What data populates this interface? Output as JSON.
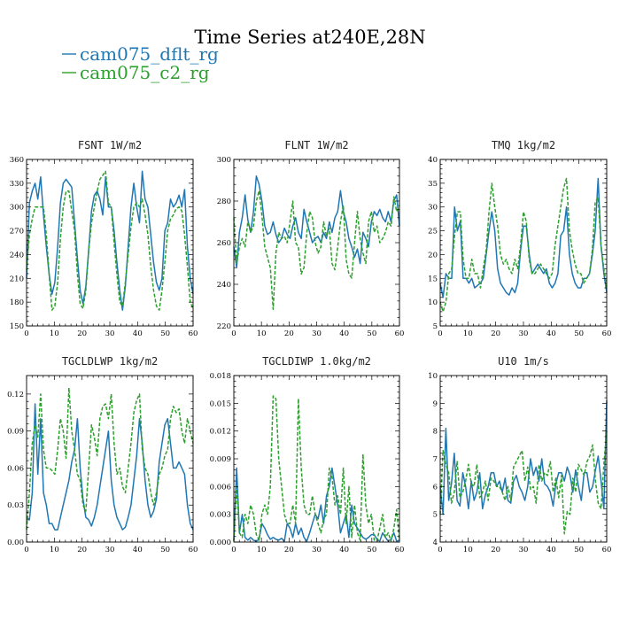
{
  "title": "Time Series at240E,28N",
  "legend": [
    {
      "label": "cam075_dflt_rg",
      "color": "#1f77b4",
      "dash": "solid"
    },
    {
      "label": "cam075_c2_rg",
      "color": "#2ca02c",
      "dash": "dashed"
    }
  ],
  "chart_data": [
    {
      "type": "line",
      "title": "FSNT   1W/m2",
      "xlim": [
        0,
        60
      ],
      "ylim": [
        150,
        360
      ],
      "xticks": [
        0,
        10,
        20,
        30,
        40,
        50,
        60
      ],
      "yticks": [
        150,
        180,
        210,
        240,
        270,
        300,
        330,
        360
      ],
      "yticklabels": [
        "150",
        "180",
        "210",
        "240",
        "270",
        "300",
        "330",
        "360"
      ],
      "series": [
        {
          "name": "cam075_dflt_rg",
          "values": [
            210,
            305,
            320,
            330,
            310,
            338,
            290,
            250,
            215,
            190,
            205,
            250,
            305,
            330,
            335,
            330,
            325,
            280,
            235,
            195,
            178,
            200,
            245,
            295,
            315,
            320,
            310,
            290,
            338,
            300,
            300,
            270,
            230,
            195,
            170,
            200,
            250,
            300,
            330,
            300,
            280,
            345,
            310,
            300,
            265,
            230,
            205,
            195,
            210,
            270,
            280,
            310,
            300,
            305,
            315,
            300,
            322,
            250,
            210,
            190
          ]
        },
        {
          "name": "cam075_c2_rg",
          "values": [
            220,
            265,
            285,
            300,
            300,
            300,
            300,
            265,
            215,
            170,
            175,
            205,
            260,
            300,
            320,
            320,
            295,
            270,
            215,
            178,
            172,
            195,
            245,
            280,
            300,
            320,
            335,
            340,
            345,
            305,
            300,
            255,
            215,
            180,
            175,
            205,
            240,
            275,
            300,
            305,
            300,
            310,
            290,
            265,
            225,
            195,
            175,
            170,
            195,
            230,
            270,
            285,
            290,
            298,
            300,
            295,
            265,
            225,
            180,
            172
          ]
        }
      ]
    },
    {
      "type": "line",
      "title": "FLNT   1W/m2",
      "xlim": [
        0,
        60
      ],
      "ylim": [
        220,
        300
      ],
      "xticks": [
        0,
        10,
        20,
        30,
        40,
        50,
        60
      ],
      "yticks": [
        220,
        240,
        260,
        280,
        300
      ],
      "yticklabels": [
        "220",
        "240",
        "260",
        "280",
        "300"
      ],
      "series": [
        {
          "name": "cam075_dflt_rg",
          "values": [
            258,
            248,
            265,
            272,
            283,
            271,
            265,
            275,
            292,
            288,
            280,
            268,
            264,
            265,
            270,
            264,
            260,
            262,
            267,
            264,
            262,
            268,
            272,
            265,
            262,
            276,
            270,
            265,
            260,
            262,
            263,
            260,
            265,
            262,
            270,
            265,
            272,
            275,
            285,
            275,
            270,
            262,
            258,
            253,
            257,
            250,
            265,
            262,
            258,
            270,
            275,
            273,
            276,
            272,
            270,
            275,
            270,
            280,
            283,
            268
          ]
        },
        {
          "name": "cam075_c2_rg",
          "values": [
            272,
            250,
            258,
            262,
            258,
            270,
            265,
            268,
            280,
            285,
            273,
            258,
            253,
            248,
            228,
            255,
            265,
            262,
            263,
            260,
            270,
            280,
            260,
            258,
            245,
            248,
            265,
            275,
            272,
            260,
            255,
            258,
            270,
            263,
            267,
            250,
            247,
            258,
            270,
            278,
            252,
            245,
            243,
            260,
            275,
            262,
            255,
            250,
            270,
            275,
            265,
            268,
            260,
            262,
            265,
            270,
            268,
            282,
            275,
            278
          ]
        }
      ]
    },
    {
      "type": "line",
      "title": "TMQ   1kg/m2",
      "xlim": [
        0,
        60
      ],
      "ylim": [
        5,
        40
      ],
      "xticks": [
        0,
        10,
        20,
        30,
        40,
        50,
        60
      ],
      "yticks": [
        5,
        10,
        15,
        20,
        25,
        30,
        35,
        40
      ],
      "yticklabels": [
        "5",
        "10",
        "15",
        "20",
        "25",
        "30",
        "35",
        "40"
      ],
      "series": [
        {
          "name": "cam075_dflt_rg",
          "values": [
            14,
            11,
            16,
            15,
            15,
            30,
            25,
            27,
            15,
            15,
            14,
            15,
            13,
            13.5,
            14,
            15,
            20,
            25,
            29,
            25,
            17,
            14,
            13,
            12,
            11.5,
            13,
            12,
            14,
            21,
            26,
            26,
            20,
            16,
            17,
            18,
            17,
            16,
            17,
            14,
            13,
            14,
            16,
            24,
            25,
            30,
            20,
            16,
            14,
            13,
            13,
            15,
            15,
            16,
            20,
            25,
            36,
            22,
            16,
            12
          ]
        },
        {
          "name": "cam075_c2_rg",
          "values": [
            10,
            8,
            10,
            16,
            17,
            24,
            29,
            29,
            19,
            15,
            15,
            19,
            16,
            16,
            13,
            17,
            21,
            29,
            35,
            30,
            26,
            20,
            18,
            19,
            17,
            16,
            19,
            17,
            22,
            29,
            27,
            19,
            16,
            16,
            17,
            18,
            17,
            16,
            15,
            16,
            22,
            26,
            30,
            34,
            36,
            25,
            21,
            18,
            16,
            16,
            14,
            15,
            16,
            21,
            31,
            32,
            22,
            17,
            13
          ]
        }
      ]
    },
    {
      "type": "line",
      "title": "TGCLDLWP   1kg/m2",
      "xlim": [
        0,
        60
      ],
      "ylim": [
        0,
        0.135
      ],
      "xticks": [
        0,
        10,
        20,
        30,
        40,
        50,
        60
      ],
      "yticks": [
        0,
        0.03,
        0.06,
        0.09,
        0.12
      ],
      "yticklabels": [
        "0.00",
        "0.03",
        "0.06",
        "0.09",
        "0.12"
      ],
      "series": [
        {
          "name": "cam075_dflt_rg",
          "values": [
            0.02,
            0.018,
            0.04,
            0.112,
            0.055,
            0.1,
            0.04,
            0.03,
            0.015,
            0.015,
            0.01,
            0.01,
            0.02,
            0.03,
            0.04,
            0.05,
            0.065,
            0.075,
            0.1,
            0.06,
            0.035,
            0.02,
            0.018,
            0.013,
            0.02,
            0.03,
            0.045,
            0.06,
            0.075,
            0.09,
            0.05,
            0.03,
            0.02,
            0.015,
            0.01,
            0.012,
            0.02,
            0.03,
            0.05,
            0.07,
            0.1,
            0.08,
            0.05,
            0.03,
            0.02,
            0.025,
            0.035,
            0.065,
            0.08,
            0.095,
            0.1,
            0.08,
            0.06,
            0.06,
            0.065,
            0.06,
            0.055,
            0.03,
            0.015,
            0.01
          ]
        },
        {
          "name": "cam075_c2_rg",
          "values": [
            0.01,
            0.04,
            0.08,
            0.095,
            0.085,
            0.12,
            0.075,
            0.06,
            0.06,
            0.058,
            0.055,
            0.075,
            0.1,
            0.09,
            0.068,
            0.125,
            0.09,
            0.075,
            0.055,
            0.05,
            0.03,
            0.025,
            0.06,
            0.095,
            0.085,
            0.07,
            0.1,
            0.11,
            0.112,
            0.1,
            0.12,
            0.08,
            0.055,
            0.06,
            0.045,
            0.04,
            0.06,
            0.08,
            0.105,
            0.115,
            0.12,
            0.075,
            0.06,
            0.055,
            0.04,
            0.03,
            0.04,
            0.055,
            0.06,
            0.07,
            0.075,
            0.1,
            0.11,
            0.105,
            0.108,
            0.09,
            0.08,
            0.1,
            0.09,
            0.08
          ]
        }
      ]
    },
    {
      "type": "line",
      "title": "TGCLDIWP   1.0kg/m2",
      "xlim": [
        0,
        60
      ],
      "ylim": [
        0,
        0.018
      ],
      "xticks": [
        0,
        10,
        20,
        30,
        40,
        50,
        60
      ],
      "yticks": [
        0,
        0.003,
        0.006,
        0.009,
        0.012,
        0.015,
        0.018
      ],
      "yticklabels": [
        "0.000",
        "0.003",
        "0.006",
        "0.009",
        "0.012",
        "0.015",
        "0.018"
      ],
      "series": [
        {
          "name": "cam075_dflt_rg",
          "values": [
            0.0002,
            0.008,
            0.001,
            0.003,
            0.0005,
            0.0002,
            0.0005,
            0.0002,
            0.0001,
            0.0003,
            0.002,
            0.0015,
            0.0008,
            0.0003,
            0.0005,
            0.0003,
            0.0002,
            0.0004,
            0.0001,
            0.002,
            0.0015,
            0.0005,
            0.002,
            0.0008,
            0.0015,
            0.0005,
            0.0001,
            0.001,
            0.002,
            0.003,
            0.0025,
            0.004,
            0.002,
            0.005,
            0.006,
            0.008,
            0.006,
            0.004,
            0.001,
            0.002,
            0.003,
            0.0005,
            0.004,
            0.002,
            0.0015,
            0.001,
            0.0005,
            0.0003,
            0.0005,
            0.0008,
            0.0008,
            0.0003,
            0.0001,
            0.001,
            0.0005,
            0.0001,
            0.0003,
            0.001,
            0.0001,
            0.0002
          ]
        },
        {
          "name": "cam075_c2_rg",
          "values": [
            0.0001,
            0.006,
            0.001,
            0.0005,
            0.003,
            0.002,
            0.004,
            0.003,
            0.0008,
            0.0002,
            0.003,
            0.004,
            0.003,
            0.006,
            0.0158,
            0.0155,
            0.009,
            0.006,
            0.003,
            0.002,
            0.002,
            0.004,
            0.002,
            0.0155,
            0.008,
            0.004,
            0.003,
            0.003,
            0.005,
            0.003,
            0.002,
            0.001,
            0.0025,
            0.003,
            0.008,
            0.007,
            0.004,
            0.005,
            0.003,
            0.008,
            0.002,
            0.006,
            0.0005,
            0.004,
            0.001,
            0.0002,
            0.0095,
            0.004,
            0.002,
            0.003,
            0.0002,
            0.0001,
            0.0015,
            0.003,
            0.0005,
            0.001,
            0.0001,
            0.0015,
            0.0035,
            0.0002
          ]
        }
      ]
    },
    {
      "type": "line",
      "title": "U10   1m/s",
      "xlim": [
        0,
        60
      ],
      "ylim": [
        4,
        10
      ],
      "xticks": [
        0,
        10,
        20,
        30,
        40,
        50,
        60
      ],
      "yticks": [
        4,
        5,
        6,
        7,
        8,
        9,
        10
      ],
      "yticklabels": [
        "4",
        "5",
        "6",
        "7",
        "8",
        "9",
        "10"
      ],
      "series": [
        {
          "name": "cam075_dflt_rg",
          "values": [
            6,
            5,
            8.1,
            5.5,
            6.1,
            7.2,
            5.5,
            5.3,
            6.5,
            6,
            5.2,
            6.2,
            5.5,
            5.8,
            6.5,
            5.2,
            5.7,
            6,
            6.5,
            6.5,
            6,
            6.2,
            5.8,
            6.3,
            5.5,
            5.4,
            6.2,
            6.4,
            6,
            5.8,
            5.5,
            6,
            7,
            6.4,
            6.7,
            6.2,
            7,
            6.1,
            6,
            5.8,
            5.3,
            6.1,
            6.5,
            6.5,
            6.2,
            6.7,
            6.4,
            5.8,
            6.6,
            6,
            5.5,
            6.5,
            6.5,
            5.8,
            6,
            6.6,
            7.1,
            6.2,
            5.2,
            9.1
          ]
        },
        {
          "name": "cam075_c2_rg",
          "values": [
            5,
            7.3,
            6.8,
            6.5,
            5.4,
            5.8,
            6.9,
            5.6,
            5.8,
            6.2,
            6.8,
            6.1,
            6,
            6.8,
            5.6,
            5.8,
            6.2,
            5.5,
            6.3,
            6.2,
            6,
            6,
            5.8,
            5.5,
            6,
            5.5,
            6.7,
            6.9,
            7.1,
            7.3,
            6.2,
            6.7,
            5.9,
            6,
            5.4,
            6.8,
            6.2,
            6.5,
            6.4,
            6.9,
            5.8,
            6.3,
            5.6,
            6.4,
            4.3,
            5.1,
            5,
            6.3,
            5.8,
            6.8,
            6.6,
            6.4,
            6.9,
            7.1,
            7.5,
            6.2,
            5.4,
            5.2,
            6.8,
            8
          ]
        }
      ]
    }
  ]
}
